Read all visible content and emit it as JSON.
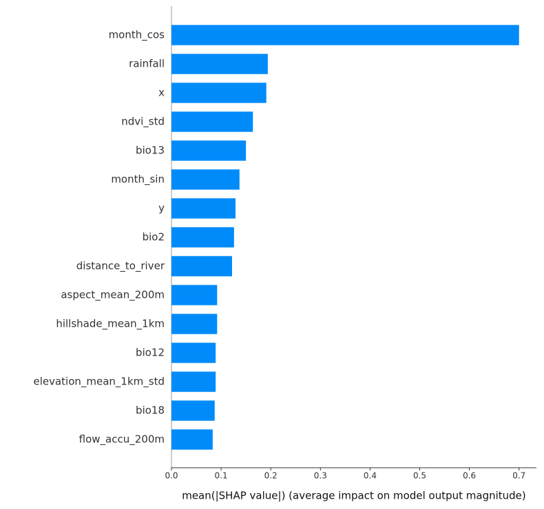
{
  "chart_data": {
    "type": "barh",
    "xlabel": "mean(|SHAP value|) (average impact on model output magnitude)",
    "categories": [
      "month_cos",
      "rainfall",
      "x",
      "ndvi_std",
      "bio13",
      "month_sin",
      "y",
      "bio2",
      "distance_to_river",
      "aspect_mean_200m",
      "hillshade_mean_1km",
      "bio12",
      "elevation_mean_1km_std",
      "bio18",
      "flow_accu_200m"
    ],
    "values": [
      0.7,
      0.194,
      0.191,
      0.164,
      0.15,
      0.137,
      0.129,
      0.126,
      0.122,
      0.092,
      0.092,
      0.089,
      0.089,
      0.087,
      0.083
    ],
    "color": "#008bfb",
    "xlim": [
      0,
      0.735
    ],
    "xticks": [
      {
        "value": 0,
        "label": "0.0"
      },
      0.1,
      0.2,
      0.3,
      0.4,
      0.5,
      0.6,
      0.7
    ],
    "grid": false
  }
}
